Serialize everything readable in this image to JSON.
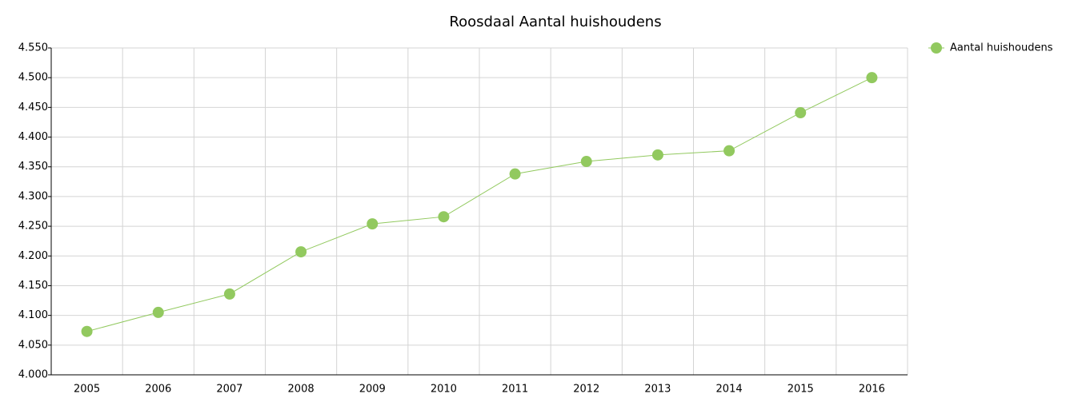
{
  "chart_data": {
    "type": "line",
    "title": "Roosdaal  Aantal huishoudens",
    "categories": [
      "2005",
      "2006",
      "2007",
      "2008",
      "2009",
      "2010",
      "2011",
      "2012",
      "2013",
      "2014",
      "2015",
      "2016"
    ],
    "series": [
      {
        "name": "Aantal huishoudens",
        "color": "#92c95f",
        "values": [
          4073,
          4105,
          4136,
          4207,
          4254,
          4266,
          4338,
          4359,
          4370,
          4377,
          4441,
          4500
        ]
      }
    ],
    "ylim": [
      4000,
      4550
    ],
    "yticks": [
      {
        "value": 4000,
        "label": "4.000"
      },
      {
        "value": 4050,
        "label": "4.050"
      },
      {
        "value": 4100,
        "label": "4.100"
      },
      {
        "value": 4150,
        "label": "4.150"
      },
      {
        "value": 4200,
        "label": "4.200"
      },
      {
        "value": 4250,
        "label": "4.250"
      },
      {
        "value": 4300,
        "label": "4.300"
      },
      {
        "value": 4350,
        "label": "4.350"
      },
      {
        "value": 4400,
        "label": "4.400"
      },
      {
        "value": 4450,
        "label": "4.450"
      },
      {
        "value": 4500,
        "label": "4.500"
      },
      {
        "value": 4550,
        "label": "4.550"
      }
    ],
    "grid": true,
    "legend": "top-right"
  }
}
